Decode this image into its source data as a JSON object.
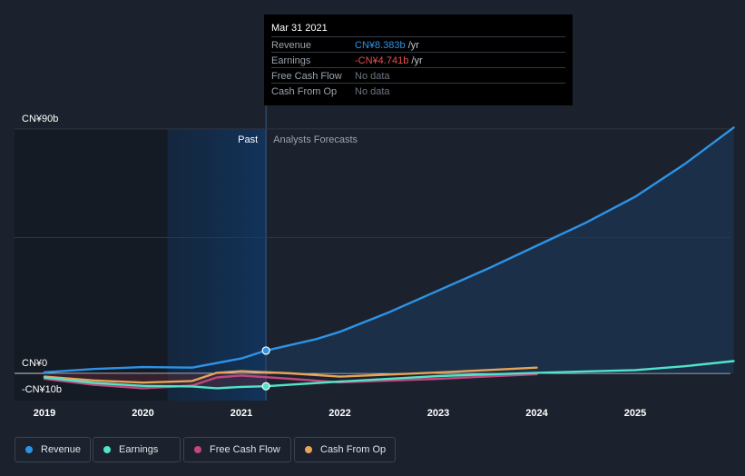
{
  "chart_data": {
    "type": "line",
    "ylim": [
      -10,
      90
    ],
    "y_ticks": [
      {
        "value": 90,
        "label": "CN¥90b"
      },
      {
        "value": 0,
        "label": "CN¥0"
      },
      {
        "value": -10,
        "label": "-CN¥10b"
      }
    ],
    "x_ticks": [
      "2019",
      "2020",
      "2021",
      "2022",
      "2023",
      "2024",
      "2025"
    ],
    "xlim": [
      2019,
      2026
    ],
    "region_labels": {
      "past": "Past",
      "forecast": "Analysts Forecasts"
    },
    "past_end": 2021.25,
    "series": [
      {
        "name": "Revenue",
        "color": "#2e93e6",
        "points": [
          [
            2019.0,
            0.4
          ],
          [
            2019.5,
            1.6
          ],
          [
            2020.0,
            2.3
          ],
          [
            2020.5,
            2.1
          ],
          [
            2021.0,
            5.5
          ],
          [
            2021.25,
            8.383
          ],
          [
            2021.75,
            12.5
          ],
          [
            2022.0,
            15.3
          ],
          [
            2022.5,
            22.5
          ],
          [
            2023.0,
            30.5
          ],
          [
            2023.5,
            38.5
          ],
          [
            2024.0,
            47.0
          ],
          [
            2024.5,
            55.5
          ],
          [
            2025.0,
            65.0
          ],
          [
            2025.5,
            77.0
          ],
          [
            2026.0,
            90.5
          ]
        ]
      },
      {
        "name": "Earnings",
        "color": "#52e3c8",
        "points": [
          [
            2019.0,
            -1.5
          ],
          [
            2019.5,
            -3.5
          ],
          [
            2020.0,
            -4.6
          ],
          [
            2020.5,
            -4.8
          ],
          [
            2020.75,
            -5.5
          ],
          [
            2021.0,
            -5.0
          ],
          [
            2021.25,
            -4.741
          ],
          [
            2022.0,
            -3.0
          ],
          [
            2023.0,
            -1.0
          ],
          [
            2024.0,
            0.2
          ],
          [
            2025.0,
            1.2
          ],
          [
            2025.5,
            2.6
          ],
          [
            2026.0,
            4.5
          ]
        ]
      },
      {
        "name": "Free Cash Flow",
        "color": "#c2467f",
        "points": [
          [
            2019.0,
            -2.0
          ],
          [
            2019.5,
            -4.2
          ],
          [
            2020.0,
            -5.5
          ],
          [
            2020.5,
            -4.5
          ],
          [
            2020.75,
            -1.5
          ],
          [
            2021.0,
            -0.8
          ],
          [
            2021.5,
            -2.0
          ],
          [
            2022.0,
            -3.3
          ],
          [
            2023.0,
            -2.0
          ],
          [
            2024.0,
            -0.3
          ]
        ]
      },
      {
        "name": "Cash From Op",
        "color": "#e8a456",
        "points": [
          [
            2019.0,
            -1.2
          ],
          [
            2019.5,
            -2.6
          ],
          [
            2020.0,
            -3.4
          ],
          [
            2020.5,
            -2.8
          ],
          [
            2020.75,
            0.2
          ],
          [
            2021.0,
            0.8
          ],
          [
            2021.5,
            0.0
          ],
          [
            2022.0,
            -1.2
          ],
          [
            2023.0,
            0.3
          ],
          [
            2024.0,
            2.1
          ]
        ]
      }
    ]
  },
  "tooltip": {
    "date": "Mar 31 2021",
    "rows": [
      {
        "label": "Revenue",
        "value": "CN¥8.383b",
        "unit": " /yr",
        "color": "#2e93e6"
      },
      {
        "label": "Earnings",
        "value": "-CN¥4.741b",
        "unit": " /yr",
        "color": "#e84f4f"
      },
      {
        "label": "Free Cash Flow",
        "value": "No data",
        "unit": "",
        "color": "#6c7480"
      },
      {
        "label": "Cash From Op",
        "value": "No data",
        "unit": "",
        "color": "#6c7480"
      }
    ]
  },
  "legend": [
    {
      "label": "Revenue",
      "color": "#2e93e6"
    },
    {
      "label": "Earnings",
      "color": "#52e3c8"
    },
    {
      "label": "Free Cash Flow",
      "color": "#c2467f"
    },
    {
      "label": "Cash From Op",
      "color": "#e8a456"
    }
  ]
}
